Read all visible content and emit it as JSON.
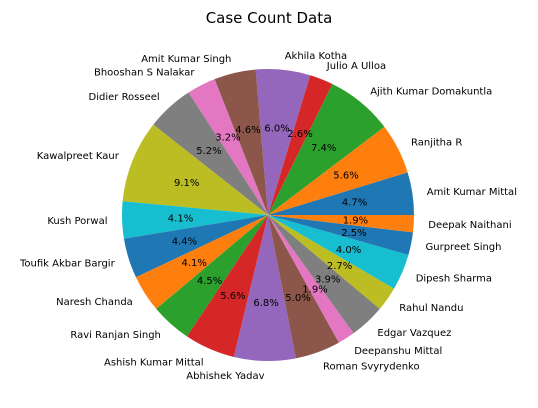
{
  "chart_data": {
    "type": "pie",
    "title": "Case Count Data",
    "start_angle_deg": 0,
    "direction": "counterclockwise",
    "slices": [
      {
        "label": "Amit Kumar Mittal",
        "percent": 4.7,
        "color": "#1f77b4"
      },
      {
        "label": "Ranjitha R",
        "percent": 5.6,
        "color": "#ff7f0e"
      },
      {
        "label": "Ajith Kumar Domakuntla",
        "percent": 7.4,
        "color": "#2ca02c"
      },
      {
        "label": "Julio A Ulloa",
        "percent": 2.6,
        "color": "#d62728"
      },
      {
        "label": "Akhila Kotha",
        "percent": 6.0,
        "color": "#9467bd"
      },
      {
        "label": "Amit Kumar Singh",
        "percent": 4.6,
        "color": "#8c564b"
      },
      {
        "label": "Bhooshan S Nalakar",
        "percent": 3.2,
        "color": "#e377c2"
      },
      {
        "label": "Didier Rosseel",
        "percent": 5.2,
        "color": "#7f7f7f"
      },
      {
        "label": "Kawalpreet Kaur",
        "percent": 9.1,
        "color": "#bcbd22"
      },
      {
        "label": "Kush Porwal",
        "percent": 4.1,
        "color": "#17becf"
      },
      {
        "label": "Toufik Akbar Bargir",
        "percent": 4.4,
        "color": "#1f77b4"
      },
      {
        "label": "Naresh Chanda",
        "percent": 4.1,
        "color": "#ff7f0e"
      },
      {
        "label": "Ravi Ranjan Singh",
        "percent": 4.5,
        "color": "#2ca02c"
      },
      {
        "label": "Ashish Kumar Mittal",
        "percent": 5.6,
        "color": "#d62728"
      },
      {
        "label": "Abhishek Yadav",
        "percent": 6.8,
        "color": "#9467bd"
      },
      {
        "label": "Roman Svyrydenko",
        "percent": 5.0,
        "color": "#8c564b"
      },
      {
        "label": "Deepanshu Mittal",
        "percent": 1.9,
        "color": "#e377c2"
      },
      {
        "label": "Edgar Vazquez",
        "percent": 3.9,
        "color": "#7f7f7f"
      },
      {
        "label": "Rahul Nandu",
        "percent": 2.7,
        "color": "#bcbd22"
      },
      {
        "label": "Dipesh Sharma",
        "percent": 4.0,
        "color": "#17becf"
      },
      {
        "label": "Gurpreet Singh",
        "percent": 2.5,
        "color": "#1f77b4"
      },
      {
        "label": "Deepak Naithani",
        "percent": 1.9,
        "color": "#ff7f0e"
      }
    ]
  }
}
